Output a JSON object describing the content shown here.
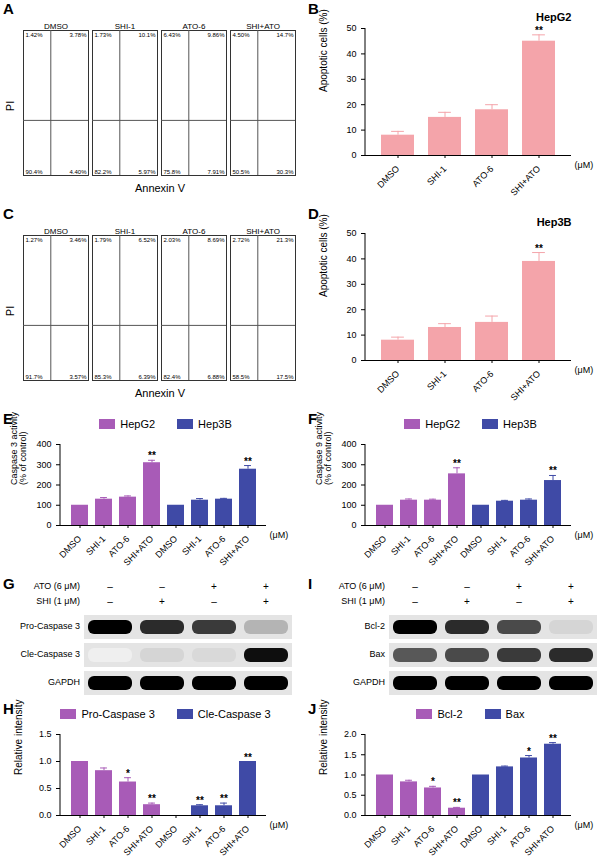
{
  "chart_data": [
    {
      "panel": "A",
      "type": "flow_cytometry",
      "x_label": "Annexin V",
      "y_label": "PI",
      "tick_labels": false,
      "plots": [
        {
          "title": "DMSO",
          "quadrant_labels": [
            "1.42%",
            "3.78%",
            "90.4%",
            "4.40%"
          ]
        },
        {
          "title": "SHI-1",
          "quadrant_labels": [
            "1.73%",
            "10.1%",
            "82.2%",
            "5.97%"
          ]
        },
        {
          "title": "ATO-6",
          "quadrant_labels": [
            "6.43%",
            "9.86%",
            "75.8%",
            "7.91%"
          ]
        },
        {
          "title": "SHI+ATO",
          "quadrant_labels": [
            "4.50%",
            "14.7%",
            "50.5%",
            "30.3%"
          ]
        }
      ]
    },
    {
      "panel": "B",
      "type": "bar",
      "title": "HepG2",
      "categories": [
        "DMSO",
        "SHI-1",
        "ATO-6",
        "SHI+ATO"
      ],
      "values": [
        8,
        15,
        18,
        45
      ],
      "errors": [
        1.5,
        2,
        2,
        2.5
      ],
      "annotations": [
        null,
        null,
        null,
        "**"
      ],
      "y_label": "Apoptotic cells (%)",
      "x_label": "(μM)",
      "ylim": [
        0,
        50
      ],
      "yticks": [
        0,
        10,
        20,
        30,
        40,
        50
      ],
      "color": "#f4a4aa"
    },
    {
      "panel": "C",
      "type": "flow_cytometry",
      "x_label": "Annexin V",
      "y_label": "PI",
      "tick_labels": false,
      "plots": [
        {
          "title": "DMSO",
          "quadrant_labels": [
            "1.27%",
            "3.46%",
            "91.7%",
            "3.57%"
          ]
        },
        {
          "title": "SHI-1",
          "quadrant_labels": [
            "1.79%",
            "6.52%",
            "85.3%",
            "6.39%"
          ]
        },
        {
          "title": "ATO-6",
          "quadrant_labels": [
            "2.03%",
            "8.69%",
            "82.4%",
            "6.88%"
          ]
        },
        {
          "title": "SHI+ATO",
          "quadrant_labels": [
            "2.72%",
            "21.3%",
            "58.5%",
            "17.5%"
          ]
        }
      ]
    },
    {
      "panel": "D",
      "type": "bar",
      "title": "Hep3B",
      "categories": [
        "DMSO",
        "SHI-1",
        "ATO-6",
        "SHI+ATO"
      ],
      "values": [
        8,
        13,
        15,
        39
      ],
      "errors": [
        1.2,
        1.5,
        2.5,
        3.5
      ],
      "annotations": [
        null,
        null,
        null,
        "**"
      ],
      "y_label": "Apoptotic cells (%)",
      "x_label": "(μM)",
      "ylim": [
        0,
        50
      ],
      "yticks": [
        0,
        10,
        20,
        30,
        40,
        50
      ],
      "color": "#f4a4aa"
    },
    {
      "panel": "E",
      "type": "bar",
      "categories": [
        "DMSO",
        "SHI-1",
        "ATO-6",
        "SHI+ATO"
      ],
      "legend": "top",
      "series": [
        {
          "name": "HepG2",
          "color": "#a85bb7",
          "values": [
            100,
            130,
            140,
            310
          ],
          "errors": [
            0,
            8,
            6,
            12
          ],
          "annotations": [
            null,
            null,
            null,
            "**"
          ]
        },
        {
          "name": "Hep3B",
          "color": "#3f4aa6",
          "values": [
            100,
            125,
            130,
            278
          ],
          "errors": [
            0,
            8,
            4,
            18
          ],
          "annotations": [
            null,
            null,
            null,
            "**"
          ]
        }
      ],
      "y_label": "Caspase 3 activity\n(% of control)",
      "x_label": "(μM)",
      "ylim": [
        0,
        400
      ],
      "yticks": [
        0,
        100,
        200,
        300,
        400
      ]
    },
    {
      "panel": "F",
      "type": "bar",
      "categories": [
        "DMSO",
        "SHI-1",
        "ATO-6",
        "SHI+ATO"
      ],
      "legend": "top",
      "series": [
        {
          "name": "HepG2",
          "color": "#a85bb7",
          "values": [
            100,
            125,
            125,
            255
          ],
          "errors": [
            0,
            6,
            5,
            30
          ],
          "annotations": [
            null,
            null,
            null,
            "**"
          ]
        },
        {
          "name": "Hep3B",
          "color": "#3f4aa6",
          "values": [
            100,
            120,
            125,
            222
          ],
          "errors": [
            0,
            4,
            6,
            25
          ],
          "annotations": [
            null,
            null,
            null,
            "**"
          ]
        }
      ],
      "y_label": "Caspase 9 activity\n(% of control)",
      "x_label": "(μM)",
      "ylim": [
        0,
        400
      ],
      "yticks": [
        0,
        100,
        200,
        300,
        400
      ]
    },
    {
      "panel": "G",
      "type": "western_blot",
      "treatments": [
        {
          "label": "ATO (6 μM)",
          "signs": [
            "–",
            "–",
            "+",
            "+"
          ]
        },
        {
          "label": "SHI (1 μM)",
          "signs": [
            "–",
            "+",
            "–",
            "+"
          ]
        }
      ],
      "bands": [
        {
          "name": "Pro-Caspase 3",
          "intensity": [
            1,
            0.85,
            0.8,
            0.35
          ]
        },
        {
          "name": "Cle-Caspase 3",
          "intensity": [
            0.05,
            0.2,
            0.18,
            0.95
          ]
        },
        {
          "name": "GAPDH",
          "intensity": [
            1,
            1,
            1,
            1
          ]
        }
      ]
    },
    {
      "panel": "I",
      "type": "western_blot",
      "treatments": [
        {
          "label": "ATO (6 μM)",
          "signs": [
            "–",
            "–",
            "+",
            "+"
          ]
        },
        {
          "label": "SHI (1 μM)",
          "signs": [
            "–",
            "+",
            "–",
            "+"
          ]
        }
      ],
      "bands": [
        {
          "name": "Bcl-2",
          "intensity": [
            1,
            0.85,
            0.75,
            0.2
          ]
        },
        {
          "name": "Bax",
          "intensity": [
            0.7,
            0.75,
            0.8,
            0.85
          ]
        },
        {
          "name": "GAPDH",
          "intensity": [
            1,
            1,
            1,
            1
          ]
        }
      ]
    },
    {
      "panel": "H",
      "type": "bar",
      "categories": [
        "DMSO",
        "SHI-1",
        "ATO-6",
        "SHI+ATO"
      ],
      "legend": "top",
      "series": [
        {
          "name": "Pro-Caspase 3",
          "color": "#a85bb7",
          "values": [
            1,
            0.83,
            0.62,
            0.2
          ],
          "errors": [
            0,
            0.05,
            0.08,
            0.03
          ],
          "annotations": [
            null,
            null,
            "*",
            "**"
          ]
        },
        {
          "name": "Cle-Caspase 3",
          "color": "#3f4aa6",
          "values": [
            0,
            0.18,
            0.18,
            1
          ],
          "errors": [
            0,
            0.02,
            0.05,
            0
          ],
          "annotations": [
            null,
            "**",
            "**",
            "**"
          ]
        }
      ],
      "y_label": "Relative intensity",
      "x_label": "(μM)",
      "ylim": [
        0,
        1.5
      ],
      "yticks": [
        {
          "value": 0,
          "label": "0.0"
        },
        0.5,
        {
          "value": 1,
          "label": "1.0"
        },
        1.5
      ]
    },
    {
      "panel": "J",
      "type": "bar",
      "categories": [
        "DMSO",
        "SHI-1",
        "ATO-6",
        "SHI+ATO"
      ],
      "legend": "top",
      "series": [
        {
          "name": "Bcl-2",
          "color": "#a85bb7",
          "values": [
            1,
            0.83,
            0.68,
            0.18
          ],
          "errors": [
            0,
            0.04,
            0.04,
            0.02
          ],
          "annotations": [
            null,
            null,
            "*",
            "**"
          ]
        },
        {
          "name": "Bax",
          "color": "#3f4aa6",
          "values": [
            1,
            1.2,
            1.42,
            1.76
          ],
          "errors": [
            0,
            0.02,
            0.06,
            0.04
          ],
          "annotations": [
            null,
            null,
            "*",
            "**"
          ]
        }
      ],
      "y_label": "Relative intensity",
      "x_label": "(μM)",
      "ylim": [
        0,
        2
      ],
      "yticks": [
        {
          "value": 0,
          "label": "0.0"
        },
        0.5,
        {
          "value": 1,
          "label": "1.0"
        },
        1.5,
        {
          "value": 2,
          "label": "2.0"
        }
      ]
    }
  ]
}
